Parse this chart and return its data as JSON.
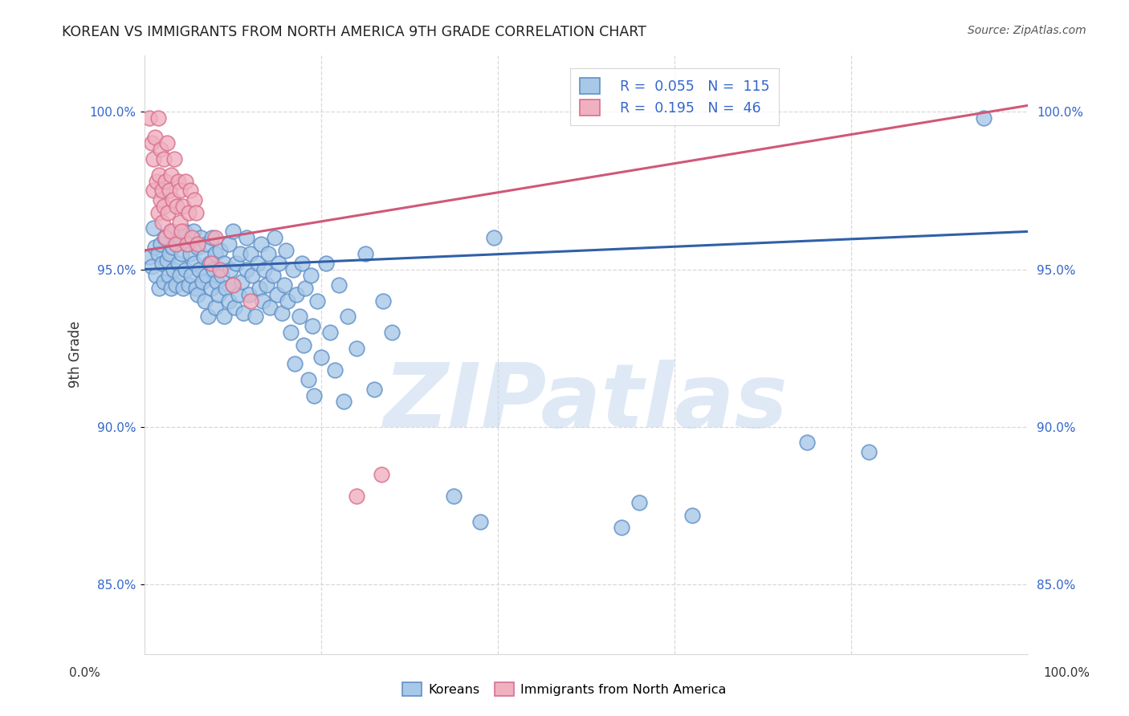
{
  "title": "KOREAN VS IMMIGRANTS FROM NORTH AMERICA 9TH GRADE CORRELATION CHART",
  "source": "Source: ZipAtlas.com",
  "ylabel": "9th Grade",
  "xlim": [
    0.0,
    1.0
  ],
  "ylim": [
    0.828,
    1.018
  ],
  "yticks": [
    0.85,
    0.9,
    0.95,
    1.0
  ],
  "ytick_labels": [
    "85.0%",
    "90.0%",
    "95.0%",
    "100.0%"
  ],
  "blue_R": 0.055,
  "blue_N": 115,
  "pink_R": 0.195,
  "pink_N": 46,
  "blue_color": "#A8C8E8",
  "blue_edge_color": "#6090C8",
  "blue_line_color": "#3060A8",
  "pink_color": "#F0B0C0",
  "pink_edge_color": "#D87090",
  "pink_line_color": "#D05878",
  "blue_line_x0": 0.0,
  "blue_line_y0": 0.95,
  "blue_line_x1": 1.0,
  "blue_line_y1": 0.962,
  "pink_line_x0": 0.0,
  "pink_line_y0": 0.956,
  "pink_line_x1": 1.0,
  "pink_line_y1": 1.002,
  "blue_points": [
    [
      0.005,
      0.954
    ],
    [
      0.008,
      0.951
    ],
    [
      0.01,
      0.963
    ],
    [
      0.012,
      0.957
    ],
    [
      0.013,
      0.948
    ],
    [
      0.015,
      0.955
    ],
    [
      0.016,
      0.944
    ],
    [
      0.018,
      0.958
    ],
    [
      0.02,
      0.952
    ],
    [
      0.022,
      0.946
    ],
    [
      0.023,
      0.96
    ],
    [
      0.025,
      0.953
    ],
    [
      0.027,
      0.948
    ],
    [
      0.028,
      0.955
    ],
    [
      0.03,
      0.962
    ],
    [
      0.03,
      0.944
    ],
    [
      0.032,
      0.957
    ],
    [
      0.033,
      0.95
    ],
    [
      0.035,
      0.945
    ],
    [
      0.036,
      0.958
    ],
    [
      0.038,
      0.952
    ],
    [
      0.04,
      0.96
    ],
    [
      0.04,
      0.948
    ],
    [
      0.042,
      0.955
    ],
    [
      0.044,
      0.944
    ],
    [
      0.045,
      0.962
    ],
    [
      0.046,
      0.95
    ],
    [
      0.048,
      0.958
    ],
    [
      0.05,
      0.945
    ],
    [
      0.052,
      0.955
    ],
    [
      0.053,
      0.948
    ],
    [
      0.055,
      0.962
    ],
    [
      0.056,
      0.952
    ],
    [
      0.058,
      0.944
    ],
    [
      0.06,
      0.957
    ],
    [
      0.06,
      0.942
    ],
    [
      0.062,
      0.95
    ],
    [
      0.064,
      0.96
    ],
    [
      0.065,
      0.946
    ],
    [
      0.067,
      0.954
    ],
    [
      0.068,
      0.94
    ],
    [
      0.07,
      0.958
    ],
    [
      0.07,
      0.948
    ],
    [
      0.072,
      0.935
    ],
    [
      0.074,
      0.952
    ],
    [
      0.075,
      0.944
    ],
    [
      0.076,
      0.96
    ],
    [
      0.078,
      0.95
    ],
    [
      0.08,
      0.938
    ],
    [
      0.08,
      0.955
    ],
    [
      0.082,
      0.946
    ],
    [
      0.084,
      0.942
    ],
    [
      0.085,
      0.956
    ],
    [
      0.087,
      0.948
    ],
    [
      0.09,
      0.952
    ],
    [
      0.09,
      0.935
    ],
    [
      0.092,
      0.944
    ],
    [
      0.095,
      0.958
    ],
    [
      0.095,
      0.94
    ],
    [
      0.097,
      0.95
    ],
    [
      0.1,
      0.945
    ],
    [
      0.1,
      0.962
    ],
    [
      0.102,
      0.938
    ],
    [
      0.104,
      0.952
    ],
    [
      0.106,
      0.942
    ],
    [
      0.108,
      0.955
    ],
    [
      0.11,
      0.946
    ],
    [
      0.112,
      0.936
    ],
    [
      0.115,
      0.95
    ],
    [
      0.115,
      0.96
    ],
    [
      0.118,
      0.942
    ],
    [
      0.12,
      0.955
    ],
    [
      0.122,
      0.948
    ],
    [
      0.125,
      0.935
    ],
    [
      0.128,
      0.952
    ],
    [
      0.13,
      0.944
    ],
    [
      0.132,
      0.958
    ],
    [
      0.134,
      0.94
    ],
    [
      0.135,
      0.95
    ],
    [
      0.138,
      0.945
    ],
    [
      0.14,
      0.955
    ],
    [
      0.142,
      0.938
    ],
    [
      0.145,
      0.948
    ],
    [
      0.147,
      0.96
    ],
    [
      0.15,
      0.942
    ],
    [
      0.152,
      0.952
    ],
    [
      0.155,
      0.936
    ],
    [
      0.158,
      0.945
    ],
    [
      0.16,
      0.956
    ],
    [
      0.162,
      0.94
    ],
    [
      0.165,
      0.93
    ],
    [
      0.168,
      0.95
    ],
    [
      0.17,
      0.92
    ],
    [
      0.172,
      0.942
    ],
    [
      0.175,
      0.935
    ],
    [
      0.178,
      0.952
    ],
    [
      0.18,
      0.926
    ],
    [
      0.182,
      0.944
    ],
    [
      0.185,
      0.915
    ],
    [
      0.188,
      0.948
    ],
    [
      0.19,
      0.932
    ],
    [
      0.192,
      0.91
    ],
    [
      0.195,
      0.94
    ],
    [
      0.2,
      0.922
    ],
    [
      0.205,
      0.952
    ],
    [
      0.21,
      0.93
    ],
    [
      0.215,
      0.918
    ],
    [
      0.22,
      0.945
    ],
    [
      0.225,
      0.908
    ],
    [
      0.23,
      0.935
    ],
    [
      0.24,
      0.925
    ],
    [
      0.25,
      0.955
    ],
    [
      0.26,
      0.912
    ],
    [
      0.27,
      0.94
    ],
    [
      0.28,
      0.93
    ],
    [
      0.35,
      0.878
    ],
    [
      0.38,
      0.87
    ],
    [
      0.395,
      0.96
    ],
    [
      0.54,
      0.868
    ],
    [
      0.56,
      0.876
    ],
    [
      0.62,
      0.872
    ],
    [
      0.75,
      0.895
    ],
    [
      0.82,
      0.892
    ],
    [
      0.95,
      0.998
    ]
  ],
  "pink_points": [
    [
      0.005,
      0.998
    ],
    [
      0.008,
      0.99
    ],
    [
      0.01,
      0.975
    ],
    [
      0.01,
      0.985
    ],
    [
      0.012,
      0.992
    ],
    [
      0.014,
      0.978
    ],
    [
      0.015,
      0.998
    ],
    [
      0.015,
      0.968
    ],
    [
      0.016,
      0.98
    ],
    [
      0.018,
      0.972
    ],
    [
      0.018,
      0.988
    ],
    [
      0.02,
      0.975
    ],
    [
      0.02,
      0.965
    ],
    [
      0.022,
      0.985
    ],
    [
      0.022,
      0.97
    ],
    [
      0.024,
      0.978
    ],
    [
      0.024,
      0.96
    ],
    [
      0.025,
      0.99
    ],
    [
      0.026,
      0.968
    ],
    [
      0.028,
      0.975
    ],
    [
      0.03,
      0.98
    ],
    [
      0.03,
      0.962
    ],
    [
      0.032,
      0.972
    ],
    [
      0.034,
      0.985
    ],
    [
      0.035,
      0.958
    ],
    [
      0.036,
      0.97
    ],
    [
      0.038,
      0.978
    ],
    [
      0.04,
      0.965
    ],
    [
      0.04,
      0.975
    ],
    [
      0.042,
      0.962
    ],
    [
      0.044,
      0.97
    ],
    [
      0.046,
      0.978
    ],
    [
      0.048,
      0.958
    ],
    [
      0.05,
      0.968
    ],
    [
      0.052,
      0.975
    ],
    [
      0.054,
      0.96
    ],
    [
      0.056,
      0.972
    ],
    [
      0.058,
      0.968
    ],
    [
      0.06,
      0.958
    ],
    [
      0.075,
      0.952
    ],
    [
      0.08,
      0.96
    ],
    [
      0.085,
      0.95
    ],
    [
      0.1,
      0.945
    ],
    [
      0.12,
      0.94
    ],
    [
      0.24,
      0.878
    ],
    [
      0.268,
      0.885
    ]
  ],
  "watermark_text": "ZIPatlas",
  "watermark_color": "#C5D8F0",
  "background_color": "#FFFFFF",
  "grid_color": "#D8D8D8",
  "tick_color": "#3366CC",
  "title_color": "#222222",
  "source_color": "#555555"
}
